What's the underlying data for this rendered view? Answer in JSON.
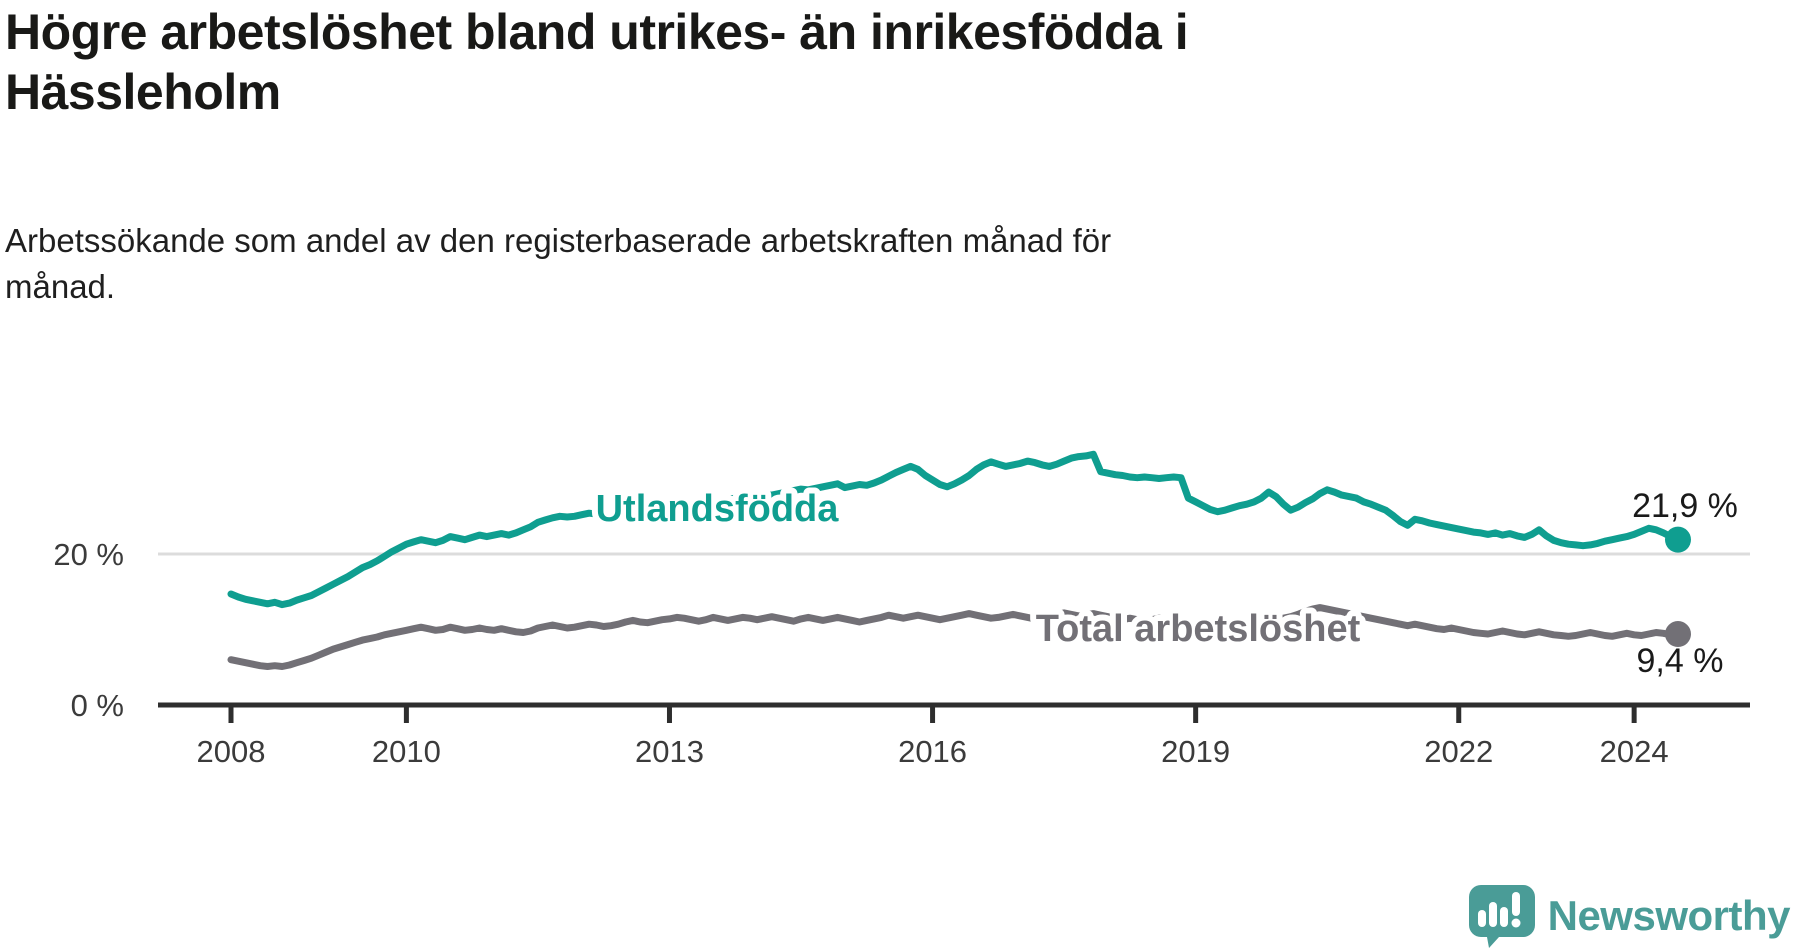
{
  "header": {
    "title": "Högre arbetslöshet bland utrikes- än inrikesfödda i\nHässleholm",
    "subtitle": "Arbetssökande som andel av den registerbaserade arbetskraften månad för\nmånad."
  },
  "footer": {
    "brand": "Newsworthy"
  },
  "colors": {
    "teal_series": "#0f9e90",
    "gray_series": "#727076",
    "grid": "#dcdcdc",
    "axis": "#2e2e2e",
    "tick_text": "#3b3b3b",
    "value_text": "#1a1a1a",
    "logo_teal": "#4a9c97",
    "background": "#ffffff"
  },
  "chart_data": {
    "type": "line",
    "title": "Högre arbetslöshet bland utrikes- än inrikesfödda i Hässleholm",
    "subtitle": "Arbetssökande som andel av den registerbaserade arbetskraften månad för månad.",
    "x_unit": "month",
    "x_start": "2008-01",
    "x_end": "2024-07",
    "grid": "single-horizontal-gridline-at-20",
    "legend_position": "inline-labels-on-lines",
    "ylim": [
      0,
      43
    ],
    "x_tick_years": [
      2008,
      2010,
      2013,
      2016,
      2019,
      2022,
      2024
    ],
    "y_ticks": [
      {
        "value": 20,
        "label": "20 %",
        "gridline": true
      },
      {
        "value": 0,
        "label": "0 %",
        "gridline": false
      }
    ],
    "series": [
      {
        "name": "Utlandsfödda",
        "color": "#0f9e90",
        "end_label": "21,9 %",
        "end_value": 21.9,
        "values": [
          14.7,
          14.3,
          14.0,
          13.8,
          13.6,
          13.4,
          13.6,
          13.3,
          13.5,
          13.9,
          14.2,
          14.5,
          15.0,
          15.5,
          16.0,
          16.5,
          17.0,
          17.6,
          18.2,
          18.6,
          19.1,
          19.7,
          20.3,
          20.8,
          21.3,
          21.6,
          21.9,
          21.7,
          21.5,
          21.8,
          22.3,
          22.1,
          21.9,
          22.2,
          22.5,
          22.3,
          22.5,
          22.7,
          22.5,
          22.8,
          23.2,
          23.6,
          24.2,
          24.5,
          24.8,
          25.0,
          24.9,
          25.0,
          25.2,
          25.4,
          25.3,
          25.1,
          25.3,
          25.5,
          25.8,
          25.6,
          25.7,
          25.9,
          26.0,
          26.1,
          26.3,
          26.5,
          26.4,
          26.6,
          26.8,
          27.0,
          27.3,
          27.1,
          27.2,
          27.4,
          27.5,
          27.6,
          27.7,
          27.9,
          27.8,
          28.0,
          28.2,
          28.4,
          28.6,
          28.5,
          28.7,
          28.9,
          29.1,
          29.3,
          28.8,
          29.0,
          29.2,
          29.1,
          29.4,
          29.8,
          30.3,
          30.8,
          31.2,
          31.6,
          31.2,
          30.4,
          29.8,
          29.2,
          28.9,
          29.3,
          29.8,
          30.4,
          31.2,
          31.8,
          32.2,
          31.9,
          31.6,
          31.8,
          32.0,
          32.3,
          32.1,
          31.8,
          31.6,
          31.9,
          32.3,
          32.7,
          32.9,
          33.0,
          33.2,
          30.9,
          30.7,
          30.5,
          30.4,
          30.2,
          30.1,
          30.2,
          30.1,
          30.0,
          30.1,
          30.2,
          30.1,
          27.4,
          26.9,
          26.4,
          25.9,
          25.6,
          25.8,
          26.1,
          26.4,
          26.6,
          26.9,
          27.4,
          28.2,
          27.6,
          26.6,
          25.8,
          26.2,
          26.8,
          27.3,
          28.0,
          28.5,
          28.2,
          27.8,
          27.6,
          27.4,
          26.9,
          26.6,
          26.2,
          25.8,
          25.1,
          24.3,
          23.8,
          24.6,
          24.4,
          24.1,
          23.9,
          23.7,
          23.5,
          23.3,
          23.1,
          22.9,
          22.8,
          22.6,
          22.8,
          22.5,
          22.7,
          22.4,
          22.2,
          22.6,
          23.2,
          22.4,
          21.8,
          21.5,
          21.3,
          21.2,
          21.1,
          21.2,
          21.4,
          21.7,
          21.9,
          22.1,
          22.3,
          22.6,
          23.0,
          23.4,
          23.2,
          22.8,
          22.3,
          21.9
        ]
      },
      {
        "name": "Total arbetslöshet",
        "color": "#727076",
        "end_label": "9,4 %",
        "end_value": 9.4,
        "values": [
          6.0,
          5.8,
          5.6,
          5.4,
          5.2,
          5.1,
          5.2,
          5.1,
          5.3,
          5.6,
          5.9,
          6.2,
          6.6,
          7.0,
          7.4,
          7.7,
          8.0,
          8.3,
          8.6,
          8.8,
          9.0,
          9.3,
          9.5,
          9.7,
          9.9,
          10.1,
          10.3,
          10.1,
          9.9,
          10.0,
          10.3,
          10.1,
          9.9,
          10.0,
          10.2,
          10.0,
          9.9,
          10.1,
          9.9,
          9.7,
          9.6,
          9.8,
          10.2,
          10.4,
          10.6,
          10.4,
          10.2,
          10.3,
          10.5,
          10.7,
          10.6,
          10.4,
          10.5,
          10.7,
          11.0,
          11.2,
          11.0,
          10.9,
          11.1,
          11.3,
          11.4,
          11.6,
          11.5,
          11.3,
          11.1,
          11.3,
          11.6,
          11.4,
          11.2,
          11.4,
          11.6,
          11.5,
          11.3,
          11.5,
          11.7,
          11.5,
          11.3,
          11.1,
          11.4,
          11.6,
          11.4,
          11.2,
          11.4,
          11.6,
          11.4,
          11.2,
          11.0,
          11.2,
          11.4,
          11.6,
          11.9,
          11.7,
          11.5,
          11.7,
          11.9,
          11.7,
          11.5,
          11.3,
          11.5,
          11.7,
          11.9,
          12.1,
          11.9,
          11.7,
          11.5,
          11.6,
          11.8,
          12.0,
          11.8,
          11.6,
          11.4,
          11.6,
          11.8,
          12.0,
          12.2,
          12.0,
          11.8,
          11.9,
          12.1,
          11.9,
          11.7,
          11.5,
          11.3,
          11.5,
          11.3,
          11.1,
          11.3,
          11.5,
          11.3,
          11.1,
          11.3,
          11.1,
          10.9,
          10.7,
          10.5,
          10.6,
          10.8,
          11.0,
          11.2,
          11.0,
          10.8,
          10.9,
          11.1,
          11.3,
          11.5,
          11.7,
          12.0,
          12.4,
          12.7,
          12.9,
          12.7,
          12.5,
          12.3,
          12.1,
          11.9,
          11.7,
          11.5,
          11.3,
          11.1,
          10.9,
          10.7,
          10.5,
          10.7,
          10.5,
          10.3,
          10.1,
          10.0,
          10.2,
          10.0,
          9.8,
          9.6,
          9.5,
          9.4,
          9.6,
          9.8,
          9.6,
          9.4,
          9.3,
          9.5,
          9.7,
          9.5,
          9.3,
          9.2,
          9.1,
          9.2,
          9.4,
          9.6,
          9.4,
          9.2,
          9.1,
          9.3,
          9.5,
          9.3,
          9.2,
          9.4,
          9.6,
          9.5,
          9.3,
          9.4
        ]
      }
    ]
  }
}
